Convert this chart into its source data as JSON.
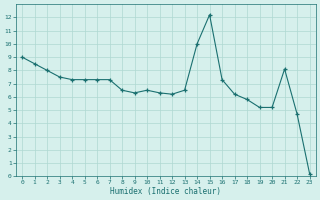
{
  "x": [
    0,
    1,
    2,
    3,
    4,
    5,
    6,
    7,
    8,
    9,
    10,
    11,
    12,
    13,
    14,
    15,
    16,
    17,
    18,
    19,
    20,
    21,
    22,
    23
  ],
  "y": [
    9.0,
    8.5,
    8.0,
    7.5,
    7.3,
    7.3,
    7.3,
    7.3,
    6.5,
    6.3,
    6.5,
    6.3,
    6.2,
    6.5,
    10.0,
    12.2,
    7.3,
    6.2,
    5.8,
    5.2,
    5.2,
    8.1,
    4.7,
    0.2
  ],
  "xlabel": "Humidex (Indice chaleur)",
  "xlim": [
    -0.5,
    23.5
  ],
  "ylim": [
    0,
    13
  ],
  "yticks": [
    0,
    1,
    2,
    3,
    4,
    5,
    6,
    7,
    8,
    9,
    10,
    11,
    12
  ],
  "xticks": [
    0,
    1,
    2,
    3,
    4,
    5,
    6,
    7,
    8,
    9,
    10,
    11,
    12,
    13,
    14,
    15,
    16,
    17,
    18,
    19,
    20,
    21,
    22,
    23
  ],
  "line_color": "#1a7070",
  "marker": "+",
  "bg_color": "#d6f0ec",
  "grid_color": "#afd8d2",
  "tick_color": "#1a7070",
  "label_color": "#1a7070",
  "figsize": [
    3.2,
    2.0
  ],
  "dpi": 100
}
